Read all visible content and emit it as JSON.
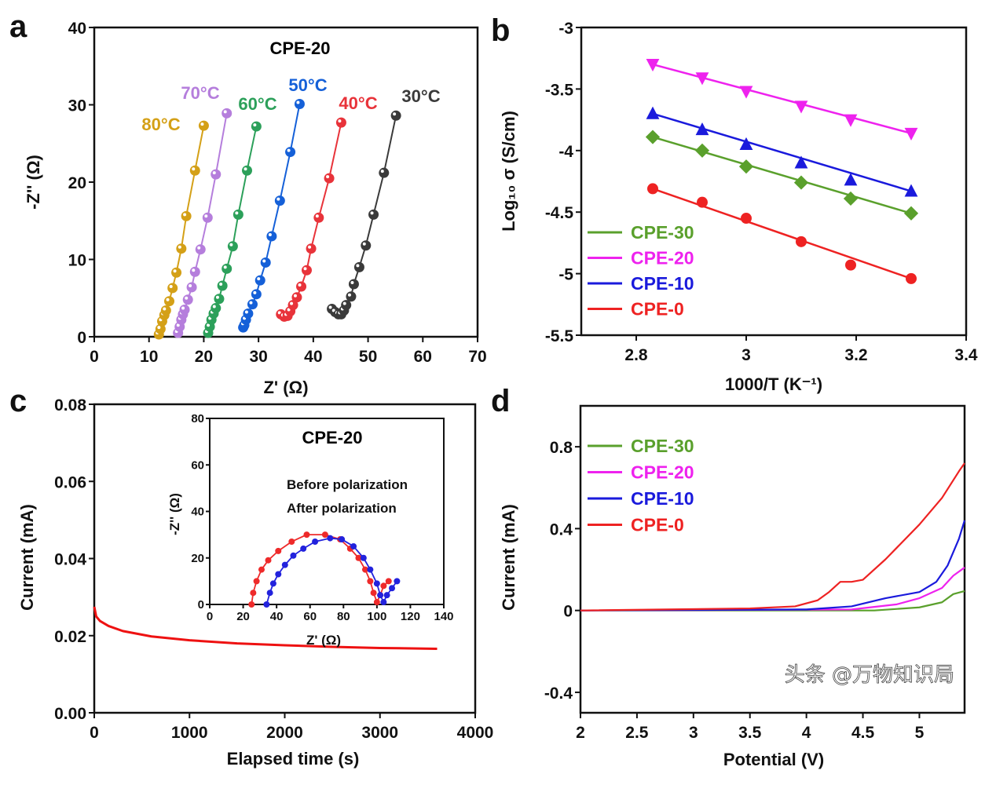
{
  "watermark": "头条 @万物知识局",
  "chart_data": [
    {
      "panel": "a",
      "type": "scatter",
      "title": "CPE-20",
      "xlabel": "Z' (Ω)",
      "ylabel": "-Z'' (Ω)",
      "xlim": [
        0,
        70
      ],
      "ylim": [
        0,
        40
      ],
      "xticks": [
        0,
        10,
        20,
        30,
        40,
        50,
        60,
        70
      ],
      "yticks": [
        0,
        10,
        20,
        30,
        40
      ],
      "series": [
        {
          "name": "80°C",
          "color": "#d4a017",
          "points": [
            [
              11.8,
              0.3
            ],
            [
              12.1,
              1
            ],
            [
              12.4,
              2
            ],
            [
              12.8,
              2.8
            ],
            [
              13.1,
              3.4
            ],
            [
              13.7,
              4.6
            ],
            [
              14.3,
              6.3
            ],
            [
              15.0,
              8.3
            ],
            [
              15.9,
              11.4
            ],
            [
              16.8,
              15.6
            ],
            [
              18.4,
              21.5
            ],
            [
              20.0,
              27.3
            ]
          ]
        },
        {
          "name": "70°C",
          "color": "#b57edc",
          "points": [
            [
              15.3,
              0.5
            ],
            [
              15.6,
              1.3
            ],
            [
              15.9,
              2.2
            ],
            [
              16.2,
              2.9
            ],
            [
              16.5,
              3.5
            ],
            [
              17.1,
              4.8
            ],
            [
              17.8,
              6.4
            ],
            [
              18.4,
              8.4
            ],
            [
              19.4,
              11.3
            ],
            [
              20.7,
              15.4
            ],
            [
              22.2,
              21.0
            ],
            [
              24.2,
              28.9
            ]
          ]
        },
        {
          "name": "60°C",
          "color": "#2ca05a",
          "points": [
            [
              20.8,
              0.5
            ],
            [
              21.1,
              1.3
            ],
            [
              21.4,
              2.2
            ],
            [
              21.8,
              3.0
            ],
            [
              22.2,
              3.7
            ],
            [
              22.8,
              4.9
            ],
            [
              23.4,
              6.6
            ],
            [
              24.2,
              8.8
            ],
            [
              25.3,
              11.7
            ],
            [
              26.3,
              15.8
            ],
            [
              27.9,
              21.5
            ],
            [
              29.6,
              27.2
            ]
          ]
        },
        {
          "name": "50°C",
          "color": "#1560d8",
          "points": [
            [
              27.2,
              1.2
            ],
            [
              27.4,
              1.5
            ],
            [
              27.7,
              2.2
            ],
            [
              28.1,
              3.0
            ],
            [
              28.9,
              4.2
            ],
            [
              29.6,
              5.5
            ],
            [
              30.3,
              7.3
            ],
            [
              31.3,
              9.6
            ],
            [
              32.4,
              13.0
            ],
            [
              33.9,
              17.6
            ],
            [
              35.8,
              23.9
            ],
            [
              37.5,
              30.1
            ]
          ]
        },
        {
          "name": "40°C",
          "color": "#e8333a",
          "points": [
            [
              34.1,
              2.9
            ],
            [
              34.7,
              2.6
            ],
            [
              35.3,
              2.7
            ],
            [
              35.8,
              3.3
            ],
            [
              36.3,
              4.1
            ],
            [
              37.0,
              5.1
            ],
            [
              37.8,
              6.5
            ],
            [
              38.8,
              8.6
            ],
            [
              39.6,
              11.4
            ],
            [
              41.0,
              15.4
            ],
            [
              42.9,
              20.5
            ],
            [
              45.1,
              27.7
            ]
          ]
        },
        {
          "name": "30°C",
          "color": "#3a3a3a",
          "points": [
            [
              43.4,
              3.6
            ],
            [
              44.0,
              3.2
            ],
            [
              44.6,
              2.9
            ],
            [
              45.1,
              2.9
            ],
            [
              45.6,
              3.4
            ],
            [
              46.0,
              4.1
            ],
            [
              46.9,
              5.2
            ],
            [
              47.4,
              6.8
            ],
            [
              48.4,
              9.0
            ],
            [
              49.6,
              11.8
            ],
            [
              51.0,
              15.8
            ],
            [
              52.9,
              21.2
            ],
            [
              55.1,
              28.6
            ]
          ]
        }
      ]
    },
    {
      "panel": "b",
      "type": "scatter",
      "xlabel": "1000/T (K⁻¹)",
      "ylabel": "Log₁₀ σ (S/cm)",
      "xlim": [
        2.7,
        3.4
      ],
      "ylim": [
        -5.5,
        -3.0
      ],
      "xticks": [
        2.8,
        3.0,
        3.2,
        3.4
      ],
      "yticks": [
        -5.5,
        -5.0,
        -4.5,
        -4.0,
        -3.5,
        -3.0
      ],
      "legend_position": "bottom-left",
      "x": [
        2.83,
        2.92,
        3.0,
        3.1,
        3.19,
        3.3
      ],
      "series": [
        {
          "name": "CPE-30",
          "color": "#5aa02c",
          "marker": "diamond",
          "values": [
            -3.89,
            -4.0,
            -4.13,
            -4.26,
            -4.39,
            -4.51
          ]
        },
        {
          "name": "CPE-20",
          "color": "#ee22ee",
          "marker": "triangle-down",
          "values": [
            -3.3,
            -3.41,
            -3.52,
            -3.64,
            -3.75,
            -3.86
          ]
        },
        {
          "name": "CPE-10",
          "color": "#1a1adc",
          "marker": "triangle-up",
          "values": [
            -3.7,
            -3.83,
            -3.95,
            -4.1,
            -4.24,
            -4.33
          ]
        },
        {
          "name": "CPE-0",
          "color": "#ee2222",
          "marker": "circle",
          "values": [
            -4.31,
            -4.42,
            -4.55,
            -4.74,
            -4.93,
            -5.04
          ]
        }
      ]
    },
    {
      "panel": "c",
      "type": "line",
      "xlabel": "Elapsed time (s)",
      "ylabel": "Current (mA)",
      "xlim": [
        0,
        4000
      ],
      "ylim": [
        0,
        0.08
      ],
      "xticks": [
        0,
        1000,
        2000,
        3000,
        4000
      ],
      "yticks": [
        0.0,
        0.02,
        0.04,
        0.06,
        0.08
      ],
      "yticklabels": [
        "0.00",
        "0.02",
        "0.04",
        "0.06",
        "0.08"
      ],
      "series": [
        {
          "name": "current",
          "color": "#ee1111",
          "points": [
            [
              0,
              0.0275
            ],
            [
              20,
              0.025
            ],
            [
              60,
              0.0238
            ],
            [
              150,
              0.0225
            ],
            [
              300,
              0.0212
            ],
            [
              600,
              0.0198
            ],
            [
              1000,
              0.0188
            ],
            [
              1500,
              0.018
            ],
            [
              2000,
              0.0175
            ],
            [
              2500,
              0.0171
            ],
            [
              3000,
              0.0168
            ],
            [
              3600,
              0.0166
            ]
          ]
        }
      ],
      "inset": {
        "type": "scatter",
        "title": "CPE-20",
        "xlabel": "Z' (Ω)",
        "ylabel": "-Z'' (Ω)",
        "xlim": [
          0,
          140
        ],
        "ylim": [
          0,
          80
        ],
        "xticks": [
          0,
          20,
          40,
          60,
          80,
          100,
          120,
          140
        ],
        "yticks": [
          0,
          20,
          40,
          60,
          80
        ],
        "series": [
          {
            "name": "Before polarization",
            "color": "#ee2a2a",
            "points": [
              [
                25,
                0
              ],
              [
                26,
                5
              ],
              [
                28,
                10
              ],
              [
                31,
                15
              ],
              [
                35,
                19
              ],
              [
                41,
                23
              ],
              [
                49,
                27
              ],
              [
                58,
                30
              ],
              [
                69,
                30
              ],
              [
                78,
                28
              ],
              [
                84,
                24
              ],
              [
                89,
                20
              ],
              [
                93,
                15
              ],
              [
                96,
                10
              ],
              [
                98,
                5
              ],
              [
                100,
                1
              ],
              [
                102,
                4
              ],
              [
                104,
                8
              ],
              [
                107,
                10
              ]
            ]
          },
          {
            "name": "After polarization",
            "color": "#2222dd",
            "points": [
              [
                34,
                0
              ],
              [
                36,
                5
              ],
              [
                38,
                9
              ],
              [
                41,
                13
              ],
              [
                45,
                17
              ],
              [
                50,
                21
              ],
              [
                56,
                24
              ],
              [
                63,
                27
              ],
              [
                72,
                28.5
              ],
              [
                79,
                28
              ],
              [
                86,
                25
              ],
              [
                92,
                20
              ],
              [
                96,
                15
              ],
              [
                100,
                9
              ],
              [
                102,
                4
              ],
              [
                104,
                1
              ],
              [
                106,
                4
              ],
              [
                109,
                7
              ],
              [
                112,
                10
              ]
            ]
          }
        ]
      }
    },
    {
      "panel": "d",
      "type": "line",
      "xlabel": "Potential (V)",
      "ylabel": "Current (mA)",
      "xlim": [
        2.0,
        5.4
      ],
      "ylim": [
        -0.5,
        1.0
      ],
      "xticks": [
        2.0,
        2.5,
        3.0,
        3.5,
        4.0,
        4.5,
        5.0
      ],
      "yticks": [
        -0.4,
        0.0,
        0.4,
        0.8
      ],
      "legend_position": "top-left",
      "series": [
        {
          "name": "CPE-30",
          "color": "#5aa02c",
          "points": [
            [
              2,
              0
            ],
            [
              4.6,
              0.0
            ],
            [
              5.0,
              0.015
            ],
            [
              5.2,
              0.04
            ],
            [
              5.3,
              0.08
            ],
            [
              5.4,
              0.095
            ]
          ]
        },
        {
          "name": "CPE-20",
          "color": "#ee22ee",
          "points": [
            [
              2,
              0
            ],
            [
              4.4,
              0.005
            ],
            [
              4.8,
              0.03
            ],
            [
              5.0,
              0.06
            ],
            [
              5.2,
              0.11
            ],
            [
              5.3,
              0.17
            ],
            [
              5.4,
              0.21
            ]
          ]
        },
        {
          "name": "CPE-10",
          "color": "#1a1adc",
          "points": [
            [
              2,
              0
            ],
            [
              4.0,
              0.005
            ],
            [
              4.4,
              0.02
            ],
            [
              4.7,
              0.06
            ],
            [
              5.0,
              0.09
            ],
            [
              5.15,
              0.14
            ],
            [
              5.25,
              0.22
            ],
            [
              5.35,
              0.35
            ],
            [
              5.4,
              0.44
            ]
          ]
        },
        {
          "name": "CPE-0",
          "color": "#ee2222",
          "points": [
            [
              2,
              0
            ],
            [
              3.5,
              0.01
            ],
            [
              3.9,
              0.02
            ],
            [
              4.1,
              0.05
            ],
            [
              4.2,
              0.09
            ],
            [
              4.3,
              0.14
            ],
            [
              4.4,
              0.14
            ],
            [
              4.5,
              0.15
            ],
            [
              4.7,
              0.25
            ],
            [
              5.0,
              0.42
            ],
            [
              5.2,
              0.55
            ],
            [
              5.35,
              0.68
            ],
            [
              5.4,
              0.72
            ]
          ]
        }
      ]
    }
  ]
}
